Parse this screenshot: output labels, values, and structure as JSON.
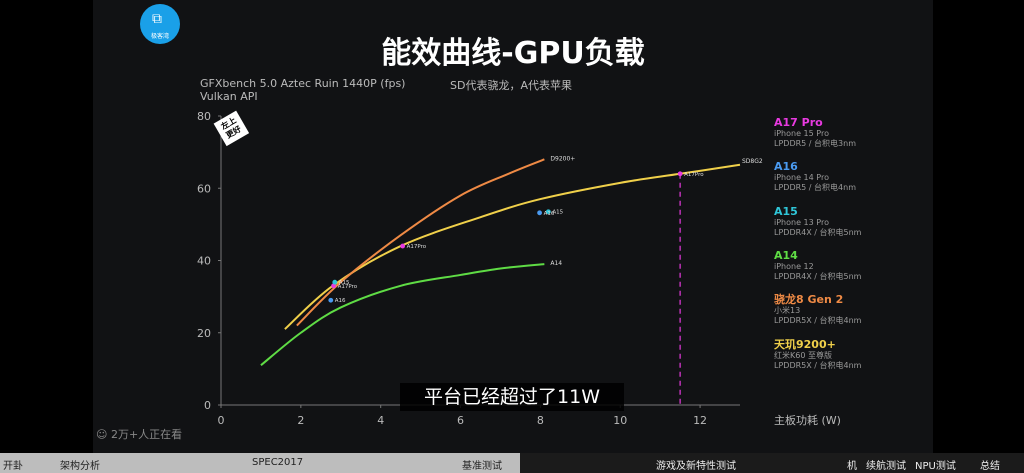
{
  "video": {
    "logo_text": "极客湾",
    "title": "能效曲线-GPU负载",
    "subtitle_line1": "GFXbench 5.0 Aztec Ruin 1440P (fps)",
    "subtitle_line2": "Vulkan API",
    "note": "SD代表骁龙，A代表苹果",
    "badge_line1": "左上",
    "badge_line2": "更好",
    "caption": "平台已经超过了11W",
    "viewers": "2万+人正在看"
  },
  "legend": [
    {
      "name": "A17 Pro",
      "device": "iPhone 15 Pro",
      "detail": "LPDDR5 / 台积电3nm",
      "color": "#e83ae0"
    },
    {
      "name": "A16",
      "device": "iPhone 14 Pro",
      "detail": "LPDDR5 / 台积电4nm",
      "color": "#4a9af0"
    },
    {
      "name": "A15",
      "device": "iPhone 13 Pro",
      "detail": "LPDDR4X / 台积电5nm",
      "color": "#2fc6d8"
    },
    {
      "name": "A14",
      "device": "iPhone 12",
      "detail": "LPDDR4X / 台积电5nm",
      "color": "#5fdc45"
    },
    {
      "name": "骁龙8 Gen 2",
      "device": "小米13",
      "detail": "LPDDR5X / 台积电4nm",
      "color": "#ef8a45"
    },
    {
      "name": "天玑9200+",
      "device": "红米K60 至尊版",
      "detail": "LPDDR5X / 台积电4nm",
      "color": "#f0d04a"
    }
  ],
  "bottom_tabs": [
    "开卦",
    "架构分析",
    "SPEC2017",
    "基准测试",
    "游戏及新特性测试",
    "机",
    "续航测试",
    "NPU测试",
    "总结"
  ],
  "chart_data": {
    "type": "line",
    "xlabel": "主板功耗 (W)",
    "ylabel": "",
    "xlim": [
      0,
      13
    ],
    "ylim": [
      0,
      80
    ],
    "xticks": [
      0,
      2,
      4,
      6,
      8,
      10,
      12
    ],
    "yticks": [
      0,
      20,
      40,
      60,
      80
    ],
    "grid": false,
    "legend_position": "right",
    "series": [
      {
        "name": "D9200+",
        "color": "#f0d04a",
        "x": [
          1.6,
          2.8,
          4.5,
          6.5,
          8.0,
          10.0,
          11.5,
          13.0
        ],
        "y": [
          21,
          33,
          44,
          52,
          57,
          61.5,
          64,
          66.5
        ]
      },
      {
        "name": "SD8G2",
        "color": "#ef8a45",
        "x": [
          1.9,
          3.0,
          4.5,
          6.0,
          7.2,
          8.1
        ],
        "y": [
          22,
          34,
          47,
          58,
          64,
          68
        ]
      },
      {
        "name": "A14",
        "color": "#5fdc45",
        "x": [
          1.0,
          2.0,
          3.0,
          4.5,
          6.0,
          7.0,
          8.1
        ],
        "y": [
          11,
          20,
          27,
          33,
          36,
          37.8,
          39
        ]
      }
    ],
    "points": [
      {
        "label": "A17Pro",
        "x": 11.5,
        "y": 64,
        "color": "#e83ae0"
      },
      {
        "label": "A17Pro",
        "x": 4.55,
        "y": 44,
        "color": "#e83ae0"
      },
      {
        "label": "A17Pro",
        "x": 2.82,
        "y": 33,
        "color": "#e83ae0"
      },
      {
        "label": "A15",
        "x": 8.2,
        "y": 53.5,
        "color": "#2fc6d8"
      },
      {
        "label": "A15",
        "x": 2.85,
        "y": 34,
        "color": "#2fc6d8"
      },
      {
        "label": "A16",
        "x": 7.98,
        "y": 53.2,
        "color": "#4a9af0"
      },
      {
        "label": "A16",
        "x": 2.75,
        "y": 29,
        "color": "#4a9af0"
      }
    ],
    "annotations": [
      "SD8G2",
      "D9200+",
      "A14"
    ],
    "vline": {
      "x": 11.5,
      "color": "#e83ae0",
      "style": "dashed"
    }
  }
}
